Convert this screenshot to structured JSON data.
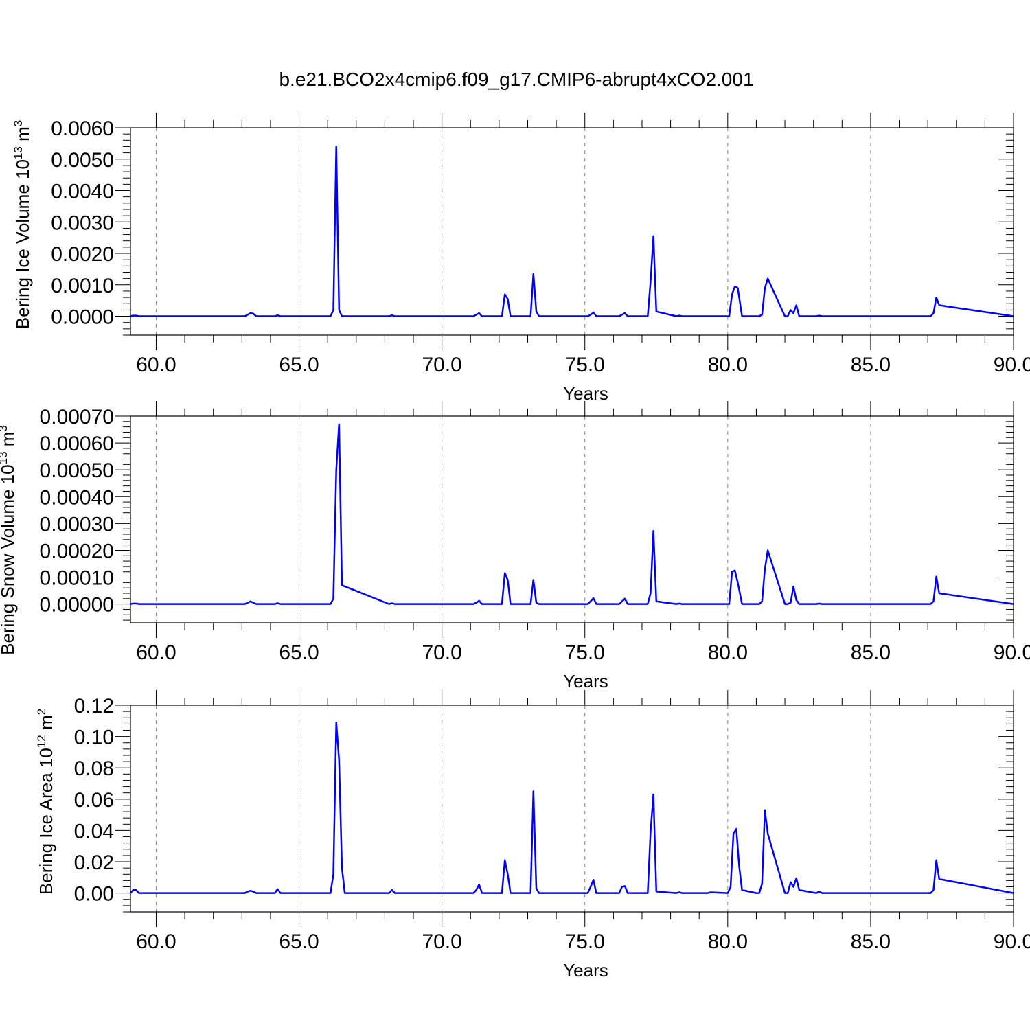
{
  "figure_title": "b.e21.BCO2x4cmip6.f09_g17.CMIP6-abrupt4xCO2.001",
  "chart_data": [
    {
      "type": "line",
      "title": "",
      "xlabel": "Years",
      "ylabel": "Bering Ice Volume 10",
      "ylabel_exp": "13",
      "ylabel_unit": " m",
      "ylabel_unit_exp": "3",
      "xlim": [
        59.1,
        90.0
      ],
      "ylim": [
        -0.0006,
        0.006
      ],
      "xticks": [
        60.0,
        65.0,
        70.0,
        75.0,
        80.0,
        85.0,
        90.0
      ],
      "xtick_labels": [
        "60.0",
        "65.0",
        "70.0",
        "75.0",
        "80.0",
        "85.0",
        "90.0"
      ],
      "yticks": [
        0.0,
        0.001,
        0.002,
        0.003,
        0.004,
        0.005,
        0.006
      ],
      "ytick_labels": [
        "0.0000",
        "0.0010",
        "0.0020",
        "0.0030",
        "0.0040",
        "0.0050",
        "0.0060"
      ],
      "grid": "dashed vertical at major x ticks",
      "color": "#0000ff",
      "series": [
        {
          "x": [
            59.1,
            59.2,
            59.3,
            59.4,
            63.1,
            63.2,
            63.3,
            63.4,
            63.5,
            64.15,
            64.25,
            64.35,
            66.1,
            66.2,
            66.3,
            66.4,
            66.5,
            68.15,
            68.25,
            68.35,
            71.1,
            71.2,
            71.3,
            71.4,
            72.1,
            72.2,
            72.3,
            72.4,
            73.1,
            73.2,
            73.3,
            73.4,
            75.1,
            75.2,
            75.3,
            75.4,
            76.2,
            76.3,
            76.4,
            76.5,
            77.2,
            77.3,
            77.4,
            77.5,
            78.2,
            78.3,
            78.4,
            80.05,
            80.15,
            80.25,
            80.35,
            80.5,
            81.1,
            81.2,
            81.3,
            81.4,
            82.0,
            82.1,
            82.2,
            82.3,
            82.4,
            82.5,
            83.1,
            83.2,
            83.3,
            87.1,
            87.2,
            87.3,
            87.4,
            90.0
          ],
          "y": [
            0.0,
            2e-05,
            2e-05,
            0.0,
            0.0,
            5e-05,
            0.0001,
            8e-05,
            0.0,
            0.0,
            3e-05,
            0.0,
            0.0,
            0.0002,
            0.0054,
            0.0002,
            0.0,
            0.0,
            3e-05,
            0.0,
            0.0,
            5e-05,
            0.0001,
            0.0,
            0.0,
            0.0007,
            0.00055,
            0.0,
            0.0,
            0.00135,
            0.00015,
            0.0,
            0.0,
            5e-05,
            0.00012,
            0.0,
            0.0,
            5e-05,
            0.0001,
            0.0,
            0.0,
            0.0011,
            0.00255,
            0.00015,
            0.0,
            2e-05,
            0.0,
            0.0,
            0.0007,
            0.00095,
            0.0009,
            0.0,
            0.0,
            5e-05,
            0.0009,
            0.0012,
            0.0,
            0.0,
            0.0002,
            0.0001,
            0.00035,
            0.0,
            0.0,
            2e-05,
            0.0,
            0.0,
            0.0001,
            0.0006,
            0.00035,
            0.0
          ]
        }
      ]
    },
    {
      "type": "line",
      "title": "",
      "xlabel": "Years",
      "ylabel": "Bering Snow Volume 10",
      "ylabel_exp": "13",
      "ylabel_unit": " m",
      "ylabel_unit_exp": "3",
      "xlim": [
        59.1,
        90.0
      ],
      "ylim": [
        -7e-05,
        0.0007
      ],
      "xticks": [
        60.0,
        65.0,
        70.0,
        75.0,
        80.0,
        85.0,
        90.0
      ],
      "xtick_labels": [
        "60.0",
        "65.0",
        "70.0",
        "75.0",
        "80.0",
        "85.0",
        "90.0"
      ],
      "yticks": [
        0.0,
        0.0001,
        0.0002,
        0.0003,
        0.0004,
        0.0005,
        0.0006,
        0.0007
      ],
      "ytick_labels": [
        "0.00000",
        "0.00010",
        "0.00020",
        "0.00030",
        "0.00040",
        "0.00050",
        "0.00060",
        "0.00070"
      ],
      "grid": "dashed vertical at major x ticks",
      "color": "#0000ff",
      "series": [
        {
          "x": [
            59.1,
            59.2,
            59.3,
            59.4,
            63.1,
            63.2,
            63.3,
            63.4,
            63.5,
            64.15,
            64.25,
            64.35,
            66.1,
            66.2,
            66.3,
            66.4,
            66.5,
            68.15,
            68.25,
            68.35,
            71.1,
            71.2,
            71.3,
            71.4,
            72.1,
            72.2,
            72.3,
            72.4,
            73.1,
            73.2,
            73.3,
            73.4,
            75.1,
            75.2,
            75.3,
            75.4,
            76.2,
            76.3,
            76.4,
            76.5,
            77.2,
            77.3,
            77.4,
            77.5,
            78.2,
            78.3,
            78.4,
            80.05,
            80.15,
            80.25,
            80.35,
            80.5,
            81.1,
            81.2,
            81.3,
            81.4,
            82.0,
            82.1,
            82.2,
            82.3,
            82.4,
            82.5,
            83.1,
            83.2,
            83.3,
            87.1,
            87.2,
            87.3,
            87.4,
            90.0
          ],
          "y": [
            0.0,
            2e-06,
            2e-06,
            0.0,
            0.0,
            5e-06,
            1e-05,
            5e-06,
            0.0,
            0.0,
            3e-06,
            0.0,
            0.0,
            2e-05,
            0.0005,
            0.00067,
            7e-05,
            0.0,
            3e-06,
            0.0,
            0.0,
            5e-06,
            1.2e-05,
            0.0,
            0.0,
            0.000115,
            9e-05,
            0.0,
            0.0,
            9e-05,
            5e-06,
            0.0,
            0.0,
            1e-05,
            2.2e-05,
            0.0,
            0.0,
            1e-05,
            2e-05,
            0.0,
            0.0,
            4e-05,
            0.000272,
            1e-05,
            0.0,
            2e-06,
            0.0,
            0.0,
            0.00012,
            0.000125,
            8e-05,
            0.0,
            0.0,
            1e-05,
            0.00013,
            0.0002,
            0.0,
            0.0,
            5e-06,
            6.5e-05,
            1.5e-05,
            0.0,
            0.0,
            2e-06,
            0.0,
            0.0,
            1e-05,
            0.000102,
            4e-05,
            0.0
          ]
        }
      ]
    },
    {
      "type": "line",
      "title": "",
      "xlabel": "Years",
      "ylabel": "Bering Ice Area 10",
      "ylabel_exp": "12",
      "ylabel_unit": " m",
      "ylabel_unit_exp": "2",
      "xlim": [
        59.1,
        90.0
      ],
      "ylim": [
        -0.012,
        0.12
      ],
      "xticks": [
        60.0,
        65.0,
        70.0,
        75.0,
        80.0,
        85.0,
        90.0
      ],
      "xtick_labels": [
        "60.0",
        "65.0",
        "70.0",
        "75.0",
        "80.0",
        "85.0",
        "90.0"
      ],
      "yticks": [
        0.0,
        0.02,
        0.04,
        0.06,
        0.08,
        0.1,
        0.12
      ],
      "ytick_labels": [
        "0.00",
        "0.02",
        "0.04",
        "0.06",
        "0.08",
        "0.10",
        "0.12"
      ],
      "grid": "dashed vertical at major x ticks",
      "color": "#0000ff",
      "series": [
        {
          "x": [
            59.1,
            59.2,
            59.3,
            59.4,
            63.1,
            63.2,
            63.3,
            63.4,
            63.5,
            64.15,
            64.25,
            64.35,
            66.1,
            66.2,
            66.3,
            66.4,
            66.5,
            66.6,
            68.15,
            68.25,
            68.35,
            71.1,
            71.2,
            71.3,
            71.4,
            72.1,
            72.2,
            72.3,
            72.4,
            73.1,
            73.2,
            73.3,
            73.4,
            75.1,
            75.2,
            75.3,
            75.4,
            76.2,
            76.3,
            76.4,
            76.5,
            77.1,
            77.2,
            77.3,
            77.4,
            77.5,
            78.2,
            78.3,
            78.4,
            79.3,
            79.4,
            80.0,
            80.1,
            80.2,
            80.3,
            80.4,
            80.5,
            81.0,
            81.1,
            81.2,
            81.3,
            81.4,
            82.0,
            82.1,
            82.2,
            82.3,
            82.4,
            82.5,
            83.1,
            83.2,
            83.3,
            87.1,
            87.2,
            87.3,
            87.4,
            90.0
          ],
          "y": [
            0.0,
            0.002,
            0.002,
            0.0,
            0.0,
            0.001,
            0.0015,
            0.001,
            0.0,
            0.0,
            0.0025,
            0.0,
            0.0,
            0.012,
            0.109,
            0.085,
            0.016,
            0.0,
            0.0,
            0.002,
            0.0,
            0.0,
            0.002,
            0.0055,
            0.0,
            0.0,
            0.021,
            0.012,
            0.0,
            0.0,
            0.065,
            0.003,
            0.0,
            0.0,
            0.004,
            0.0085,
            0.0,
            0.0,
            0.004,
            0.0045,
            0.0,
            0.0,
            0.0,
            0.039,
            0.063,
            0.001,
            0.0,
            0.0005,
            0.0,
            0.0,
            0.0005,
            0.0,
            0.004,
            0.038,
            0.041,
            0.017,
            0.002,
            0.0,
            0.0,
            0.006,
            0.053,
            0.038,
            0.0,
            0.0,
            0.007,
            0.004,
            0.0095,
            0.002,
            0.0,
            0.001,
            0.0,
            0.0,
            0.002,
            0.021,
            0.009,
            0.0
          ]
        }
      ]
    }
  ]
}
